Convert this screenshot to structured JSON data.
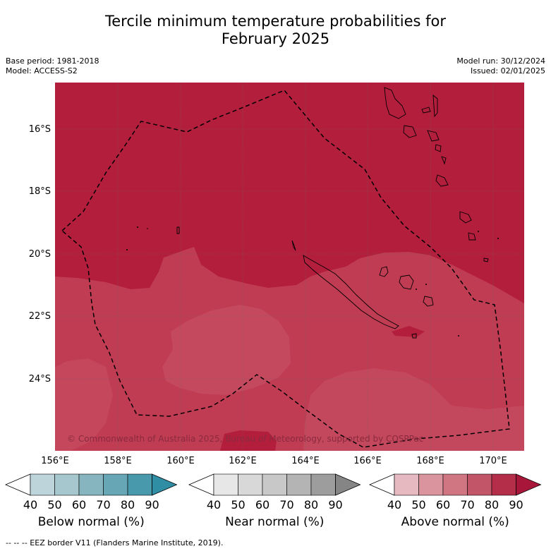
{
  "title_line1": "Tercile minimum temperature probabilities for",
  "title_line2": "February 2025",
  "base_period": "Base period: 1981-2018",
  "model": "Model: ACCESS-S2",
  "model_run": "Model run: 30/12/2024",
  "issued": "Issued: 02/01/2025",
  "copyright": "© Commonwealth of Australia 2025, Bureau of Meteorology, supported by COSPPac",
  "footer": "--  --  -- EEZ border V11 (Flanders Marine Institute, 2019).",
  "latitude_labels": [
    "16°S",
    "18°S",
    "20°S",
    "22°S",
    "24°S"
  ],
  "longitude_labels": [
    "156°E",
    "158°E",
    "160°E",
    "162°E",
    "164°E",
    "166°E",
    "168°E",
    "170°E"
  ],
  "colorbars": [
    {
      "title": "Below normal (%)",
      "ticks": [
        "40",
        "50",
        "60",
        "70",
        "80",
        "90"
      ],
      "colors": [
        "#ffffff",
        "#bdd4da",
        "#a5c7cd",
        "#86b5bf",
        "#67a6b4",
        "#4899ab",
        "#2f8ea3"
      ]
    },
    {
      "title": "Near normal (%)",
      "ticks": [
        "40",
        "50",
        "60",
        "70",
        "80",
        "90"
      ],
      "colors": [
        "#ffffff",
        "#e7e7e7",
        "#d8d8d8",
        "#c8c8c8",
        "#b4b4b4",
        "#9d9d9d",
        "#858585"
      ]
    },
    {
      "title": "Above normal (%)",
      "ticks": [
        "40",
        "50",
        "60",
        "70",
        "80",
        "90"
      ],
      "colors": [
        "#ffffff",
        "#e6b9c0",
        "#da949e",
        "#cf7682",
        "#c35569",
        "#b42e49",
        "#a8163a"
      ]
    }
  ],
  "map_colors": {
    "above_80_90": "#b21e3c",
    "above_70_80": "#c03c53"
  }
}
